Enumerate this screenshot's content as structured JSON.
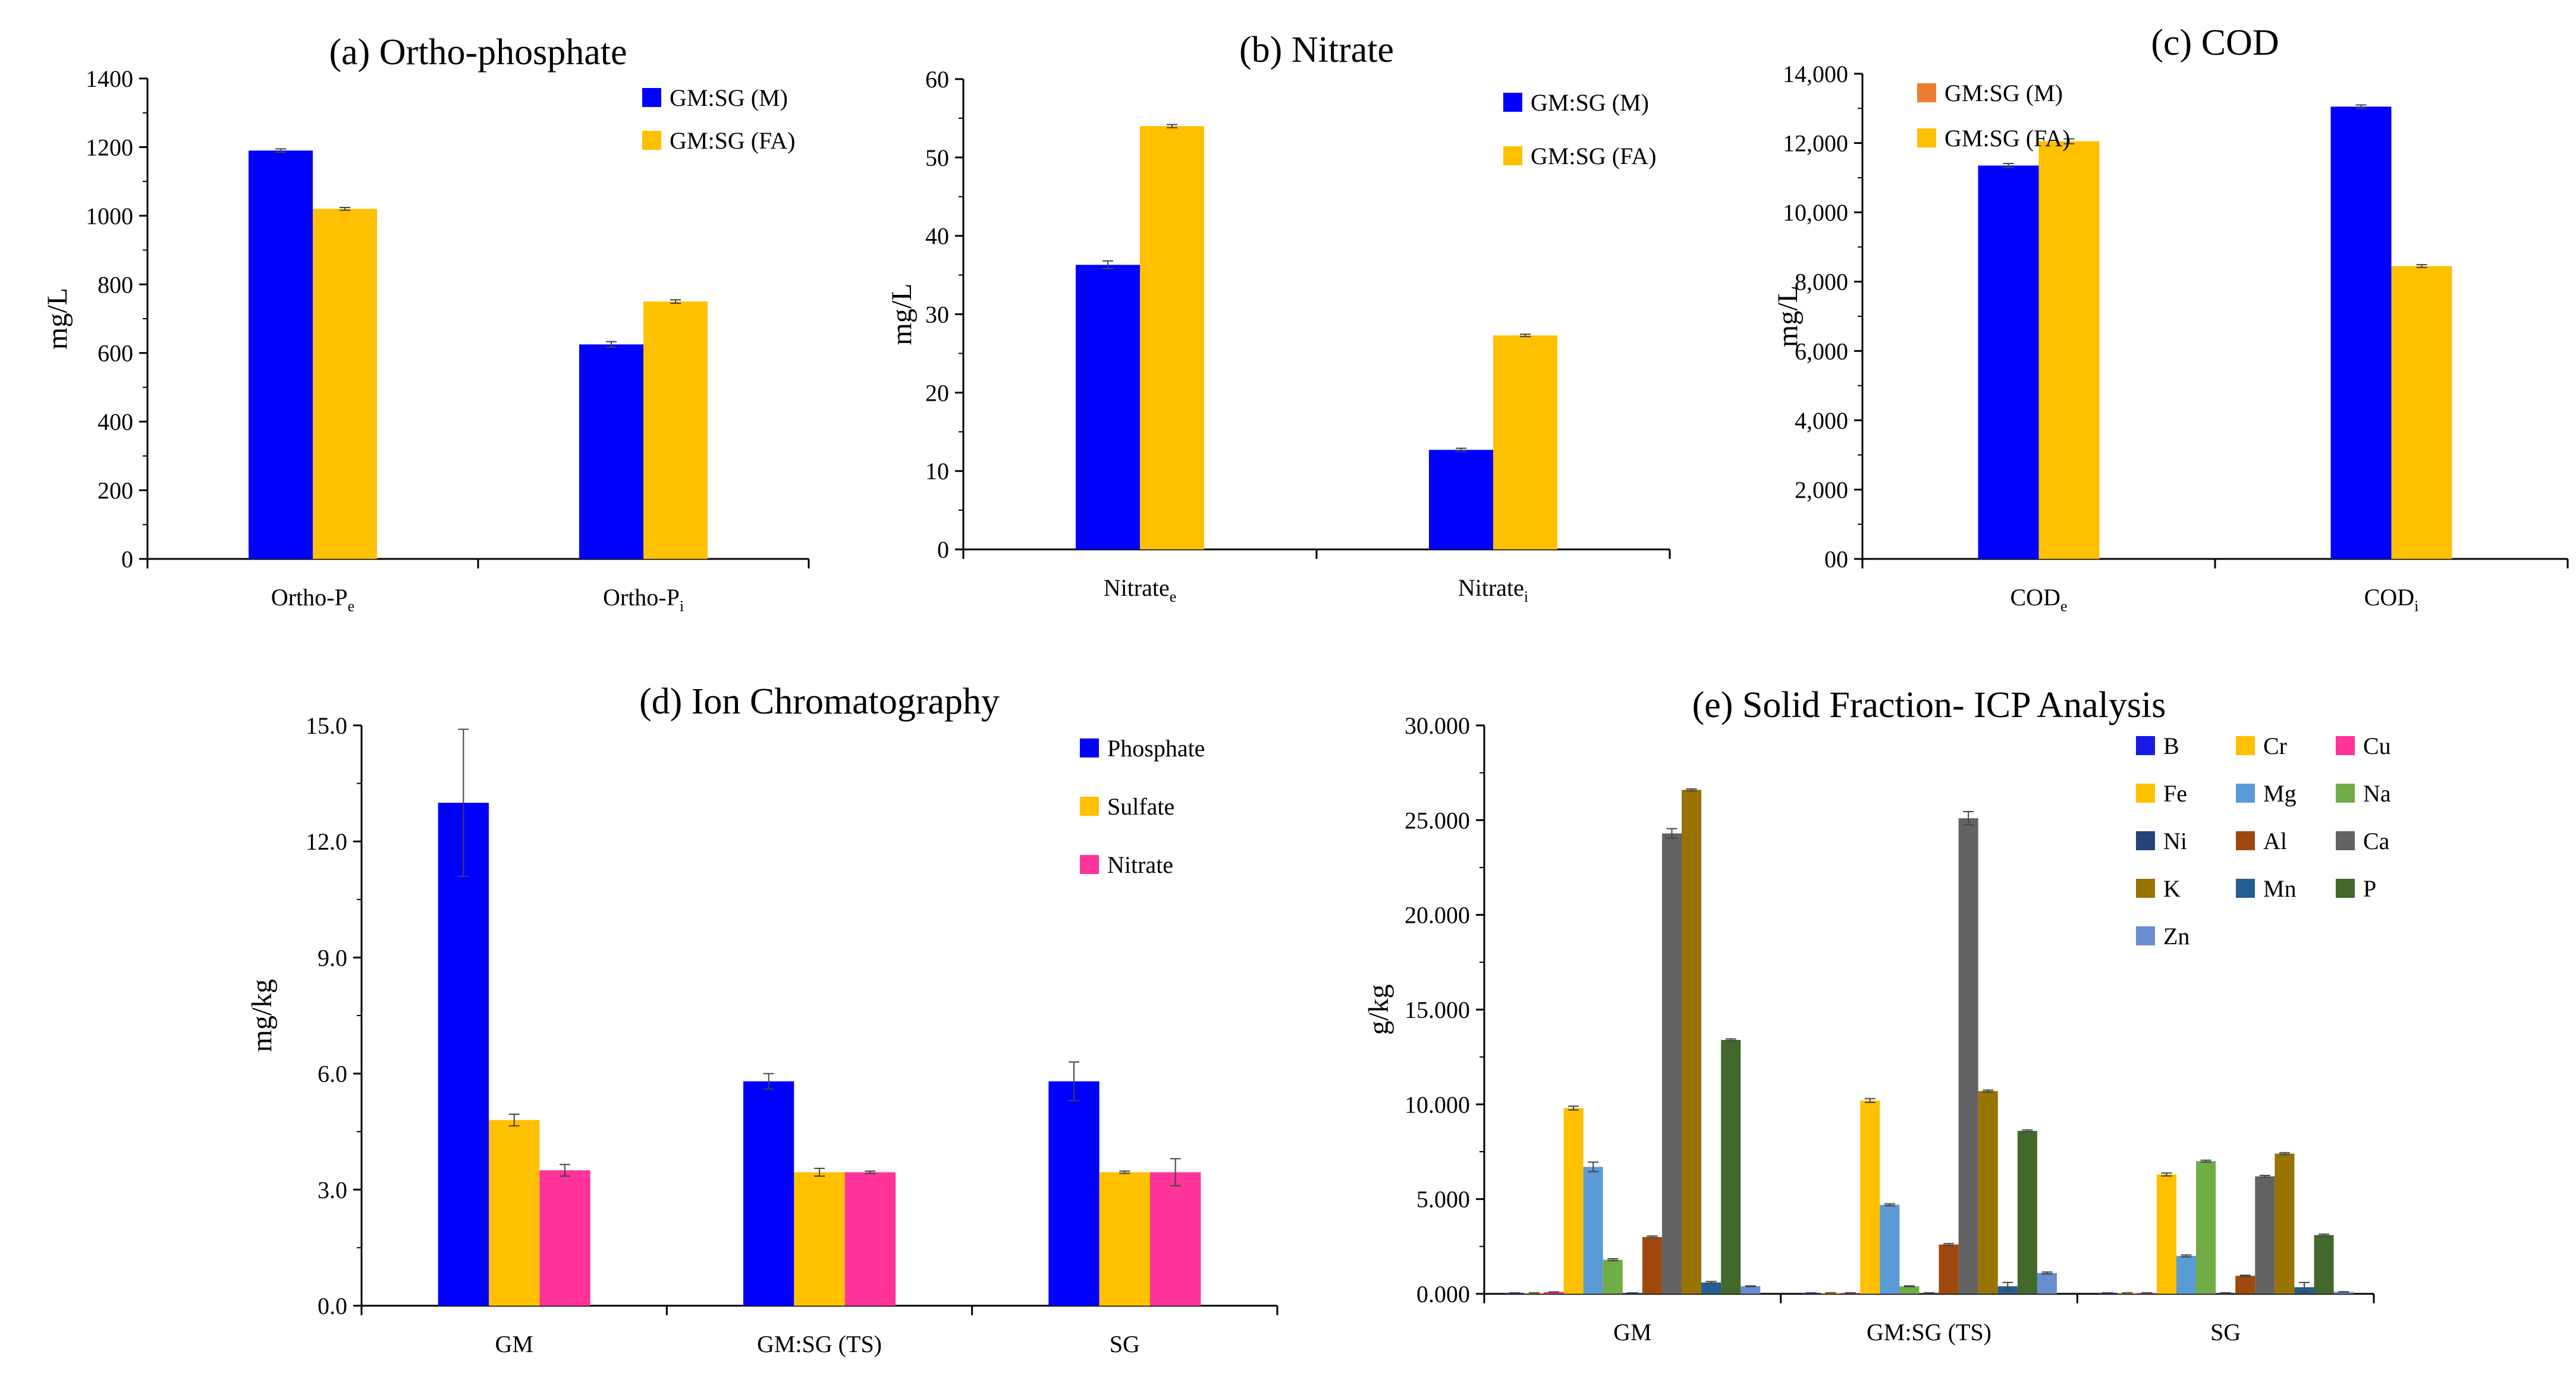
{
  "colors": {
    "blue": "#0000FF",
    "yellow": "#FFC000",
    "pink": "#FF3399",
    "orange": "#ED7D31",
    "B": "#1A1AE6",
    "Cr": "#FFC000",
    "Cu": "#FF3399",
    "Fe": "#FFC000",
    "Mg": "#5B9BD5",
    "Na": "#70AD47",
    "Ni": "#264478",
    "Al": "#9E480E",
    "Ca": "#636363",
    "K": "#997300",
    "Mn": "#255E91",
    "P": "#43682B",
    "Zn": "#698ED0"
  },
  "chart_data": [
    {
      "id": "a",
      "type": "bar",
      "title": "(a) Ortho-phosphate",
      "ylabel": "mg/L",
      "ylim": [
        0,
        1400
      ],
      "yticks": [
        "0",
        "200",
        "400",
        "600",
        "800",
        "1000",
        "1200",
        "1400"
      ],
      "categories": [
        {
          "main": "Ortho-P",
          "sub": "e"
        },
        {
          "main": "Ortho-P",
          "sub": "i"
        }
      ],
      "series": [
        {
          "name": "GM:SG (M)",
          "color": "blue",
          "values": [
            1190,
            625
          ],
          "errors": [
            5,
            8
          ]
        },
        {
          "name": "GM:SG (FA)",
          "color": "yellow",
          "values": [
            1020,
            750
          ],
          "errors": [
            4,
            5
          ]
        }
      ],
      "legend": "top-right"
    },
    {
      "id": "b",
      "type": "bar",
      "title": "(b) Nitrate",
      "ylabel": "mg/L",
      "ylim": [
        0,
        60
      ],
      "yticks": [
        "0",
        "10",
        "20",
        "30",
        "40",
        "50",
        "60"
      ],
      "categories": [
        {
          "main": "Nitrate",
          "sub": "e"
        },
        {
          "main": "Nitrate",
          "sub": "i"
        }
      ],
      "series": [
        {
          "name": "GM:SG (M)",
          "color": "blue",
          "values": [
            36.3,
            12.7
          ],
          "errors": [
            0.5,
            0.2
          ]
        },
        {
          "name": "GM:SG (FA)",
          "color": "yellow",
          "values": [
            54.0,
            27.3
          ],
          "errors": [
            0.2,
            0.15
          ]
        }
      ],
      "legend": "top-right"
    },
    {
      "id": "c",
      "type": "bar",
      "title": "(c) COD",
      "ylabel": "mg/L",
      "ylim": [
        0,
        14000
      ],
      "yticks": [
        "00",
        "2,000",
        "4,000",
        "6,000",
        "8,000",
        "10,000",
        "12,000",
        "14,000"
      ],
      "categories": [
        {
          "main": "COD",
          "sub": "e"
        },
        {
          "main": "COD",
          "sub": "i"
        }
      ],
      "series": [
        {
          "name": "GM:SG (M)",
          "color": "blue",
          "values": [
            11350,
            13050
          ],
          "errors": [
            60,
            50
          ]
        },
        {
          "name": "GM:SG (FA)",
          "color": "yellow",
          "values": [
            12050,
            8450
          ],
          "errors": [
            70,
            40
          ]
        }
      ],
      "legend_entries": [
        {
          "name": "GM:SG (M)",
          "color": "orange"
        },
        {
          "name": "GM:SG (FA)",
          "color": "yellow"
        }
      ],
      "legend": "top-left"
    },
    {
      "id": "d",
      "type": "bar",
      "title": "(d) Ion Chromatography",
      "ylabel": "mg/kg",
      "ylim": [
        0,
        15
      ],
      "yticks": [
        "0.0",
        "3.0",
        "6.0",
        "9.0",
        "12.0",
        "15.0"
      ],
      "categories": [
        "GM",
        "GM:SG (TS)",
        "SG"
      ],
      "series": [
        {
          "name": "Phosphate",
          "color": "blue",
          "values": [
            13.0,
            5.8,
            5.8
          ],
          "errors": [
            1.9,
            0.2,
            0.5
          ]
        },
        {
          "name": "Sulfate",
          "color": "yellow",
          "values": [
            4.8,
            3.45,
            3.45
          ],
          "errors": [
            0.15,
            0.1,
            0.03
          ]
        },
        {
          "name": "Nitrate",
          "color": "pink",
          "values": [
            3.5,
            3.45,
            3.45
          ],
          "errors": [
            0.15,
            0.03,
            0.35
          ]
        }
      ],
      "legend": "top-right"
    },
    {
      "id": "e",
      "type": "bar",
      "title": "(e) Solid Fraction- ICP Analysis",
      "ylabel": "g/kg",
      "ylim": [
        0,
        30
      ],
      "yticks": [
        "0.000",
        "5.000",
        "10.000",
        "15.000",
        "20.000",
        "25.000",
        "30.000"
      ],
      "categories": [
        "GM",
        "GM:SG (TS)",
        "SG"
      ],
      "series": [
        {
          "name": "B",
          "color": "B",
          "values": [
            0.05,
            0.05,
            0.05
          ],
          "errors": [
            0,
            0,
            0
          ]
        },
        {
          "name": "Cr",
          "color": "Cr",
          "values": [
            0.05,
            0.05,
            0.05
          ],
          "errors": [
            0,
            0,
            0
          ]
        },
        {
          "name": "Cu",
          "color": "Cu",
          "values": [
            0.1,
            0.05,
            0.05
          ],
          "errors": [
            0,
            0,
            0
          ]
        },
        {
          "name": "Fe",
          "color": "Fe",
          "values": [
            9.8,
            10.2,
            6.3
          ],
          "errors": [
            0.1,
            0.1,
            0.08
          ]
        },
        {
          "name": "Mg",
          "color": "Mg",
          "values": [
            6.7,
            4.7,
            2.0
          ],
          "errors": [
            0.25,
            0.05,
            0.05
          ]
        },
        {
          "name": "Na",
          "color": "Na",
          "values": [
            1.8,
            0.4,
            7.0
          ],
          "errors": [
            0.05,
            0.02,
            0.05
          ]
        },
        {
          "name": "Ni",
          "color": "Ni",
          "values": [
            0.05,
            0.05,
            0.05
          ],
          "errors": [
            0,
            0,
            0
          ]
        },
        {
          "name": "Al",
          "color": "Al",
          "values": [
            3.0,
            2.6,
            0.95
          ],
          "errors": [
            0.05,
            0.05,
            0.03
          ]
        },
        {
          "name": "Ca",
          "color": "Ca",
          "values": [
            24.3,
            25.1,
            6.2
          ],
          "errors": [
            0.25,
            0.35,
            0.05
          ]
        },
        {
          "name": "K",
          "color": "K",
          "values": [
            26.6,
            10.7,
            7.4
          ],
          "errors": [
            0.05,
            0.05,
            0.05
          ]
        },
        {
          "name": "Mn",
          "color": "Mn",
          "values": [
            0.6,
            0.4,
            0.35
          ],
          "errors": [
            0.05,
            0.2,
            0.25
          ]
        },
        {
          "name": "P",
          "color": "P",
          "values": [
            13.4,
            8.6,
            3.1
          ],
          "errors": [
            0.05,
            0.05,
            0.05
          ]
        },
        {
          "name": "Zn",
          "color": "Zn",
          "values": [
            0.4,
            1.1,
            0.1
          ],
          "errors": [
            0.02,
            0.05,
            0.01
          ]
        }
      ],
      "legend": "top-right"
    }
  ]
}
